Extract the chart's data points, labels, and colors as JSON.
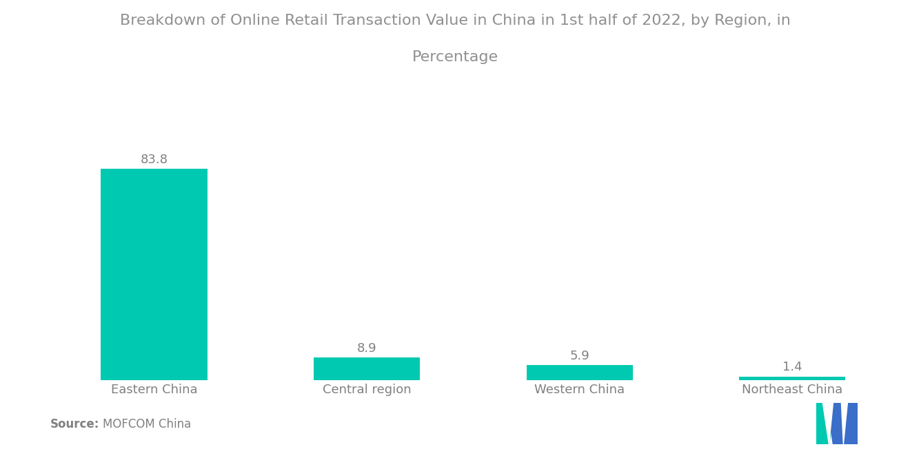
{
  "title_line1": "Breakdown of Online Retail Transaction Value in China in 1st half of 2022, by Region, in",
  "title_line2": "Percentage",
  "categories": [
    "Eastern China",
    "Central region",
    "Western China",
    "Northeast China"
  ],
  "values": [
    83.8,
    8.9,
    5.9,
    1.4
  ],
  "bar_color": "#00C9B1",
  "background_color": "#ffffff",
  "title_color": "#909090",
  "label_color": "#808080",
  "value_color": "#808080",
  "source_bold": "Source:",
  "source_text": "MOFCOM China",
  "title_fontsize": 16,
  "label_fontsize": 13,
  "value_fontsize": 13,
  "source_fontsize": 12,
  "ylim": [
    0,
    100
  ],
  "logo_teal": "#00C9B1",
  "logo_blue": "#3A6EC8"
}
